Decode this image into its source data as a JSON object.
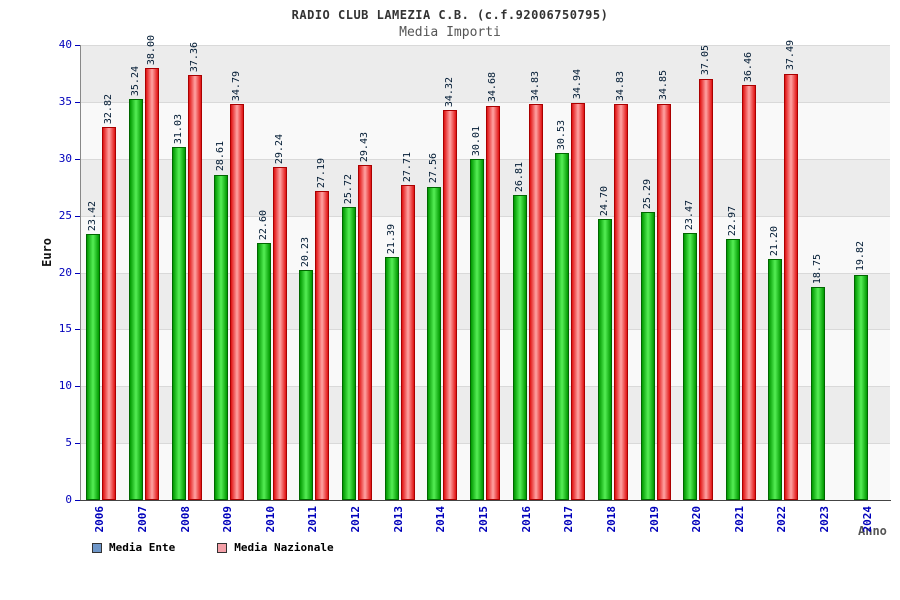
{
  "chart_data": {
    "type": "bar",
    "title": "RADIO CLUB LAMEZIA C.B. (c.f.92006750795)",
    "subtitle": "Media Importi",
    "xlabel": "Anno",
    "ylabel": "Euro",
    "ylim": [
      0,
      40
    ],
    "ytick_step": 5,
    "grid": true,
    "legend_position": "bottom-left",
    "categories": [
      "2006",
      "2007",
      "2008",
      "2009",
      "2010",
      "2011",
      "2012",
      "2013",
      "2014",
      "2015",
      "2016",
      "2017",
      "2018",
      "2019",
      "2020",
      "2021",
      "2022",
      "2023",
      "2024"
    ],
    "series": [
      {
        "name": "Media Ente",
        "legend_color": "#6e96c8",
        "bar_center_color": "#55ee55",
        "bar_edge_color": "#009900",
        "bar_border_color": "#006600",
        "values": [
          23.42,
          35.24,
          31.03,
          28.61,
          22.6,
          20.23,
          25.72,
          21.39,
          27.56,
          30.01,
          26.81,
          30.53,
          24.7,
          25.29,
          23.47,
          22.97,
          21.2,
          18.75,
          19.82
        ]
      },
      {
        "name": "Media Nazionale",
        "legend_color": "#f4a0a8",
        "bar_center_color": "#ffa3a3",
        "bar_edge_color": "#e01212",
        "bar_border_color": "#aa0000",
        "values": [
          32.82,
          38.0,
          37.36,
          34.79,
          29.24,
          27.19,
          29.43,
          27.71,
          34.32,
          34.68,
          34.83,
          34.94,
          34.83,
          34.85,
          37.05,
          36.46,
          37.49,
          null,
          null
        ]
      }
    ],
    "band_colors": [
      "#ececec",
      "#f9f9f9"
    ],
    "tick_label_color": "#0000bb",
    "value_label_color": "#001a33"
  }
}
